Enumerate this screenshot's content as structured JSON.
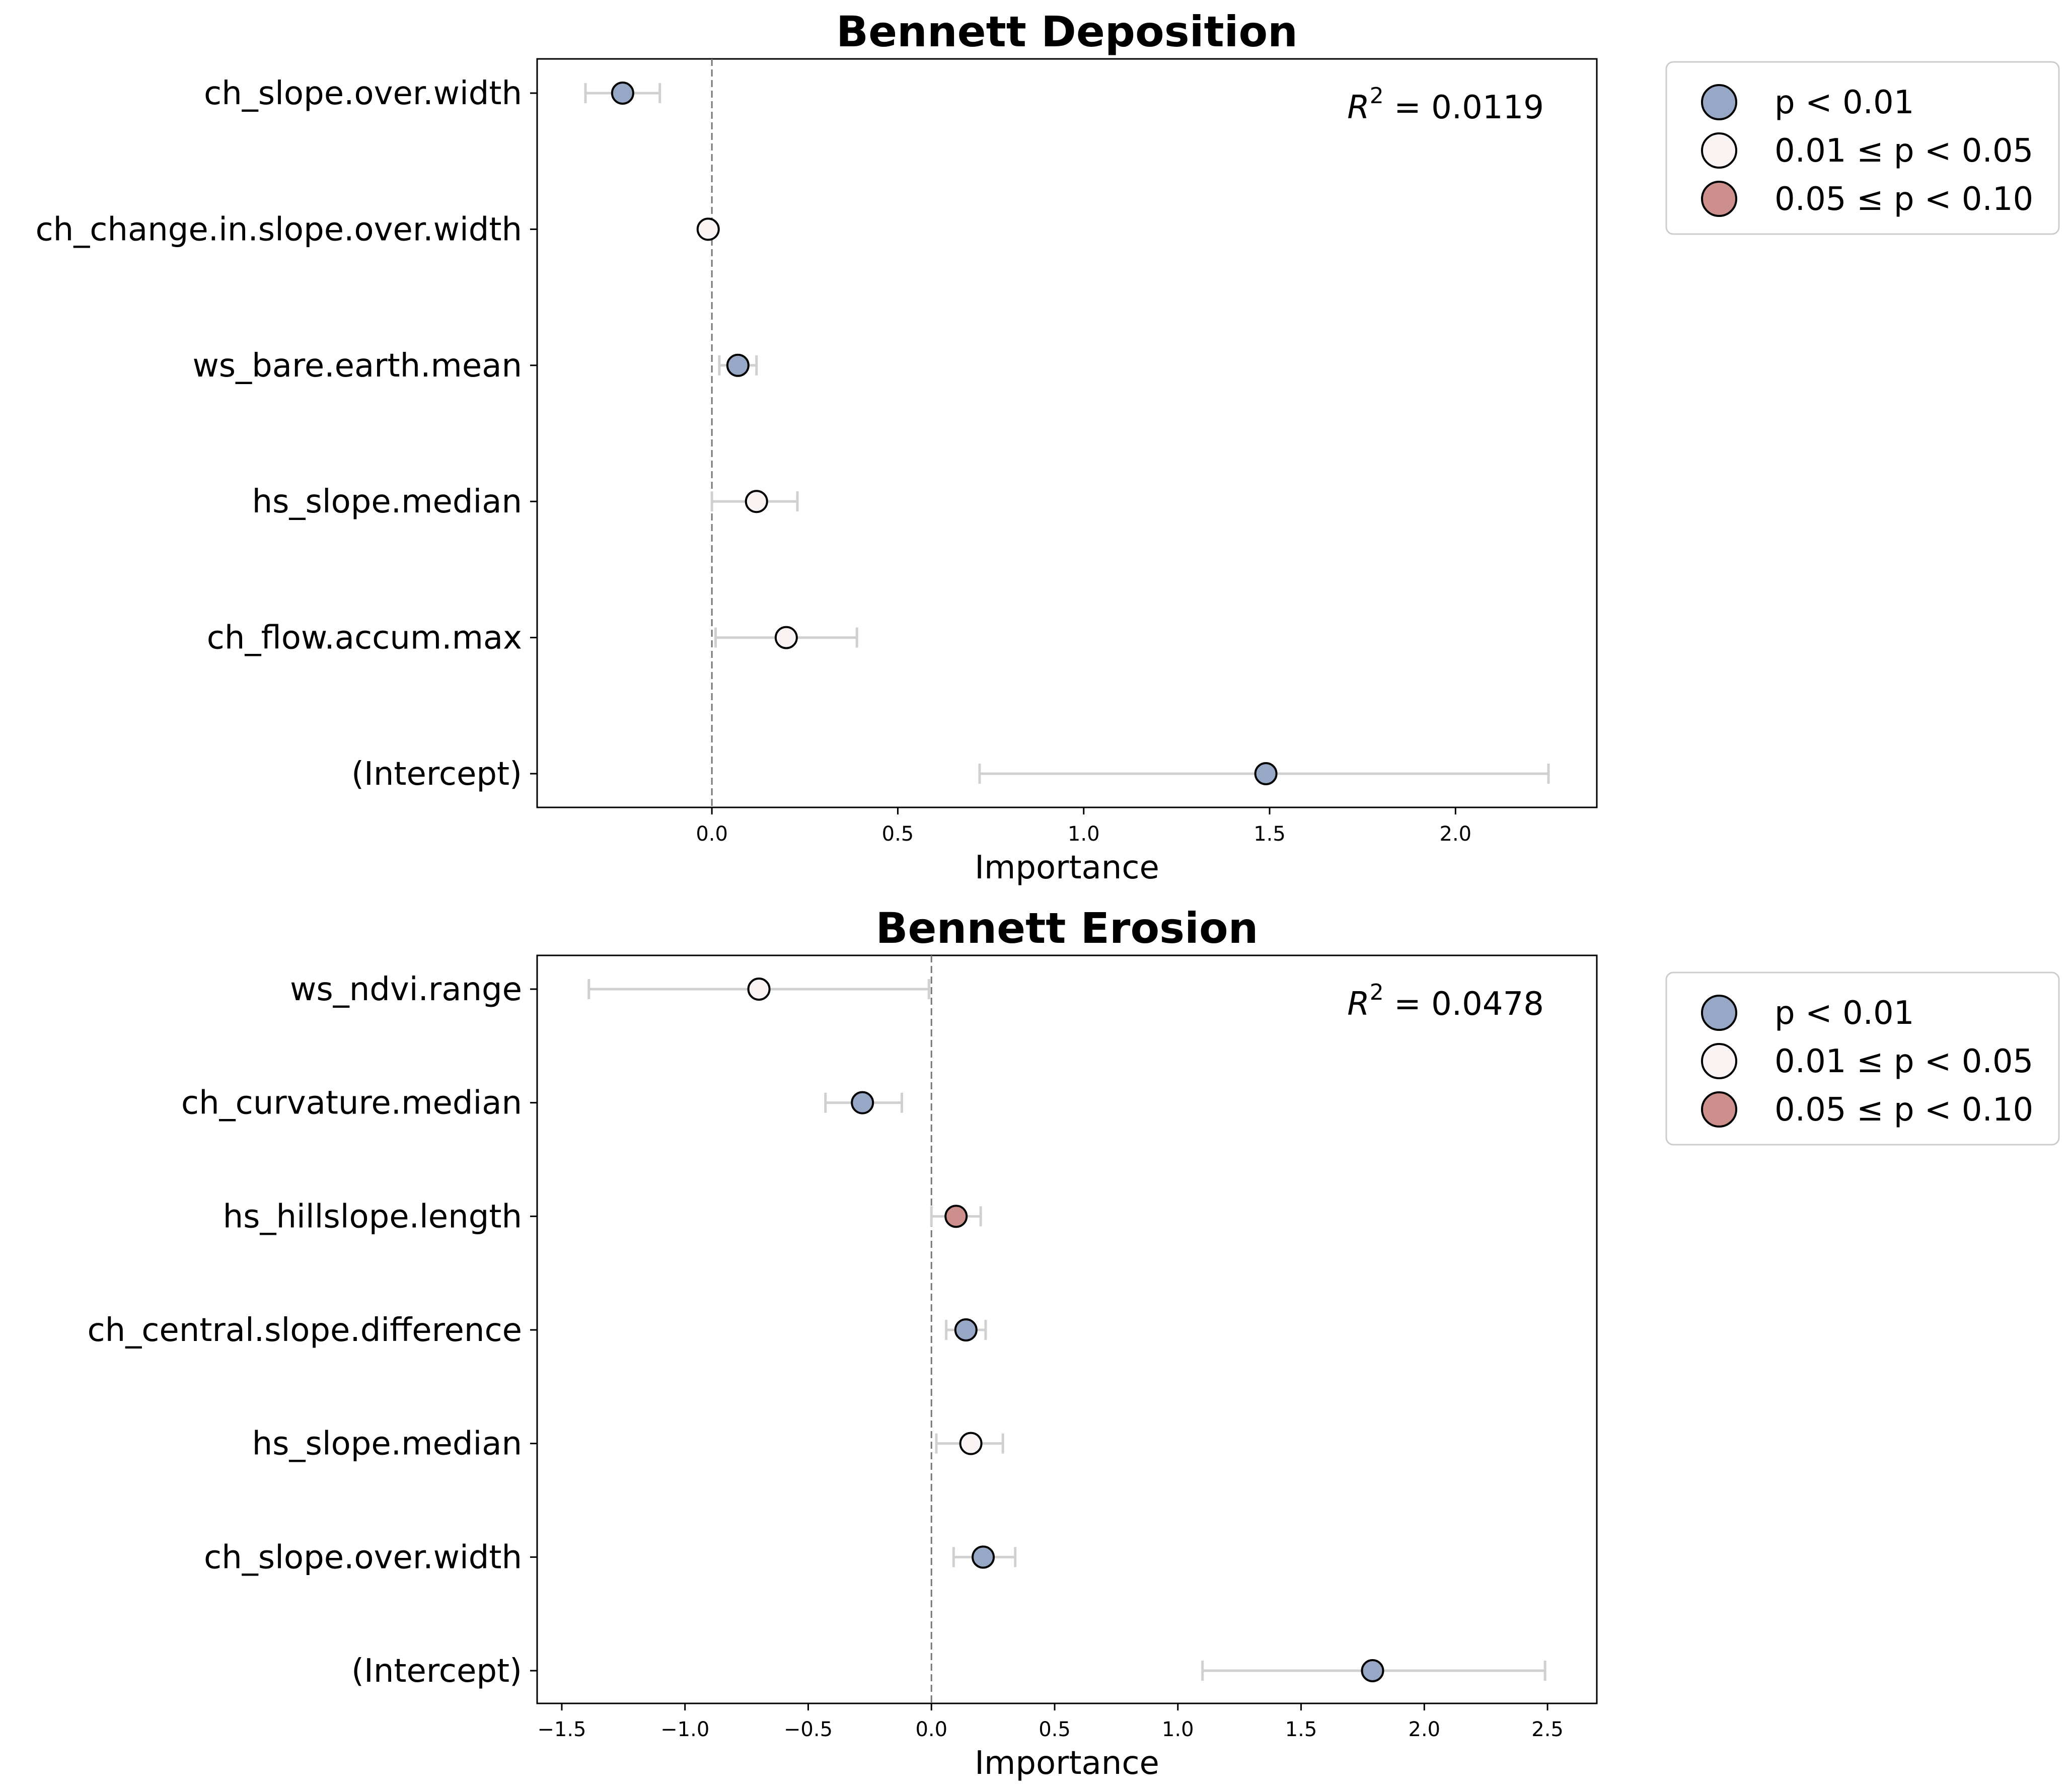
{
  "colors": {
    "p_lt_001": "#97a8c6",
    "p_001_005": "#f9f4f3",
    "p_005_010": "#cc8f8b",
    "errorbar": "#d0d0d0",
    "zero_line": "#777777"
  },
  "chart_data": [
    {
      "type": "scatter",
      "subtype": "coefficient-plot",
      "title": "Bennett Deposition",
      "xlabel": "Importance",
      "xlim": [
        -0.47,
        2.38
      ],
      "xticks": [
        0.0,
        0.5,
        1.0,
        1.5,
        2.0
      ],
      "xtick_labels": [
        "0.0",
        "0.5",
        "1.0",
        "1.5",
        "2.0"
      ],
      "r2_prefix": "R",
      "r2_sup": "2",
      "r2_value": " = 0.0119",
      "reference_line_x": 0,
      "legend": {
        "placement": "outside-right-top",
        "entries": [
          {
            "label": "p < 0.01",
            "color": "#97a8c6"
          },
          {
            "label": "0.01 ≤ p < 0.05",
            "color": "#f9f4f3"
          },
          {
            "label": "0.05 ≤ p < 0.10",
            "color": "#cc8f8b"
          }
        ]
      },
      "points": [
        {
          "label": "ch_slope.over.width",
          "value": -0.24,
          "lo": -0.34,
          "hi": -0.14,
          "sig": "p_lt_001"
        },
        {
          "label": "ch_change.in.slope.over.width",
          "value": -0.01,
          "lo": -0.01,
          "hi": -0.01,
          "sig": "p_001_005"
        },
        {
          "label": "ws_bare.earth.mean",
          "value": 0.07,
          "lo": 0.02,
          "hi": 0.12,
          "sig": "p_lt_001"
        },
        {
          "label": "hs_slope.median",
          "value": 0.12,
          "lo": 0.0,
          "hi": 0.23,
          "sig": "p_001_005"
        },
        {
          "label": "ch_flow.accum.max",
          "value": 0.2,
          "lo": 0.01,
          "hi": 0.39,
          "sig": "p_001_005"
        },
        {
          "label": "(Intercept)",
          "value": 1.49,
          "lo": 0.72,
          "hi": 2.25,
          "sig": "p_lt_001"
        }
      ]
    },
    {
      "type": "scatter",
      "subtype": "coefficient-plot",
      "title": "Bennett Erosion",
      "xlabel": "Importance",
      "xlim": [
        -1.6,
        2.7
      ],
      "xticks": [
        -1.5,
        -1.0,
        -0.5,
        0.0,
        0.5,
        1.0,
        1.5,
        2.0,
        2.5
      ],
      "xtick_labels": [
        "−1.5",
        "−1.0",
        "−0.5",
        "0.0",
        "0.5",
        "1.0",
        "1.5",
        "2.0",
        "2.5"
      ],
      "r2_prefix": "R",
      "r2_sup": "2",
      "r2_value": " = 0.0478",
      "reference_line_x": 0,
      "legend": {
        "placement": "outside-right-top",
        "entries": [
          {
            "label": "p < 0.01",
            "color": "#97a8c6"
          },
          {
            "label": "0.01 ≤ p < 0.05",
            "color": "#f9f4f3"
          },
          {
            "label": "0.05 ≤ p < 0.10",
            "color": "#cc8f8b"
          }
        ]
      },
      "points": [
        {
          "label": "ws_ndvi.range",
          "value": -0.7,
          "lo": -1.39,
          "hi": -0.01,
          "sig": "p_001_005"
        },
        {
          "label": "ch_curvature.median",
          "value": -0.28,
          "lo": -0.43,
          "hi": -0.12,
          "sig": "p_lt_001"
        },
        {
          "label": "hs_hillslope.length",
          "value": 0.1,
          "lo": 0.0,
          "hi": 0.2,
          "sig": "p_005_010"
        },
        {
          "label": "ch_central.slope.difference",
          "value": 0.14,
          "lo": 0.06,
          "hi": 0.22,
          "sig": "p_lt_001"
        },
        {
          "label": "hs_slope.median",
          "value": 0.16,
          "lo": 0.02,
          "hi": 0.29,
          "sig": "p_001_005"
        },
        {
          "label": "ch_slope.over.width",
          "value": 0.21,
          "lo": 0.09,
          "hi": 0.34,
          "sig": "p_lt_001"
        },
        {
          "label": "(Intercept)",
          "value": 1.79,
          "lo": 1.1,
          "hi": 2.49,
          "sig": "p_lt_001"
        }
      ]
    }
  ]
}
